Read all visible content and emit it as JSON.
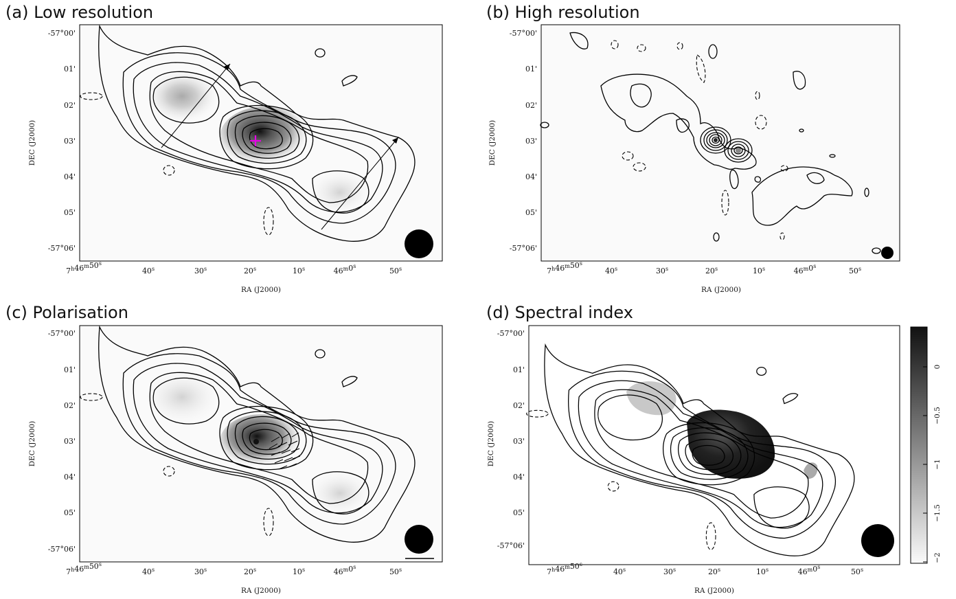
{
  "chart_data": [
    {
      "type": "heatmap",
      "title": "(a) Low resolution",
      "xlabel": "RA (J2000)",
      "ylabel": "DEC (J2000)",
      "x_ticks": [
        "7h46m50s",
        "40s",
        "30s",
        "20s",
        "10s",
        "46m0s",
        "50s"
      ],
      "y_ticks": [
        "-57°00'",
        "01'",
        "02'",
        "03'",
        "04'",
        "05'",
        "-57°06'"
      ],
      "annotations": [
        "magenta cross marking core",
        "two arrows along lobes",
        "beam ellipse bottom-right"
      ]
    },
    {
      "type": "heatmap",
      "title": "(b) High resolution",
      "xlabel": "RA (J2000)",
      "ylabel": "DEC (J2000)",
      "x_ticks": [
        "7h46m50s",
        "40s",
        "30s",
        "20s",
        "10s",
        "46m0s",
        "50s"
      ],
      "y_ticks": [
        "-57°00'",
        "01'",
        "02'",
        "03'",
        "04'",
        "05'",
        "-57°06'"
      ],
      "annotations": [
        "small beam ellipse bottom-right"
      ]
    },
    {
      "type": "heatmap",
      "title": "(c) Polarisation",
      "xlabel": "RA (J2000)",
      "ylabel": "DEC (J2000)",
      "x_ticks": [
        "7h46m50s",
        "40s",
        "30s",
        "20s",
        "10s",
        "46m0s",
        "50s"
      ],
      "y_ticks": [
        "-57°00'",
        "01'",
        "02'",
        "03'",
        "04'",
        "05'",
        "-57°06'"
      ],
      "annotations": [
        "polarisation vectors near core",
        "beam ellipse and scale bar bottom-right"
      ]
    },
    {
      "type": "heatmap",
      "title": "(d) Spectral index",
      "xlabel": "RA (J2000)",
      "ylabel": "DEC (J2000)",
      "x_ticks": [
        "7h46m50s",
        "40s",
        "30s",
        "20s",
        "10s",
        "46m0s",
        "50s"
      ],
      "y_ticks": [
        "-57°00'",
        "01'",
        "02'",
        "03'",
        "04'",
        "05'",
        "-57°06'"
      ],
      "colorbar": {
        "range": [
          -2,
          0.4
        ],
        "ticks": [
          "0",
          "−0.5",
          "−1",
          "−1.5",
          "−2"
        ]
      }
    }
  ],
  "colors": {
    "magenta_cross": "#e600e6",
    "ink": "#000000"
  }
}
